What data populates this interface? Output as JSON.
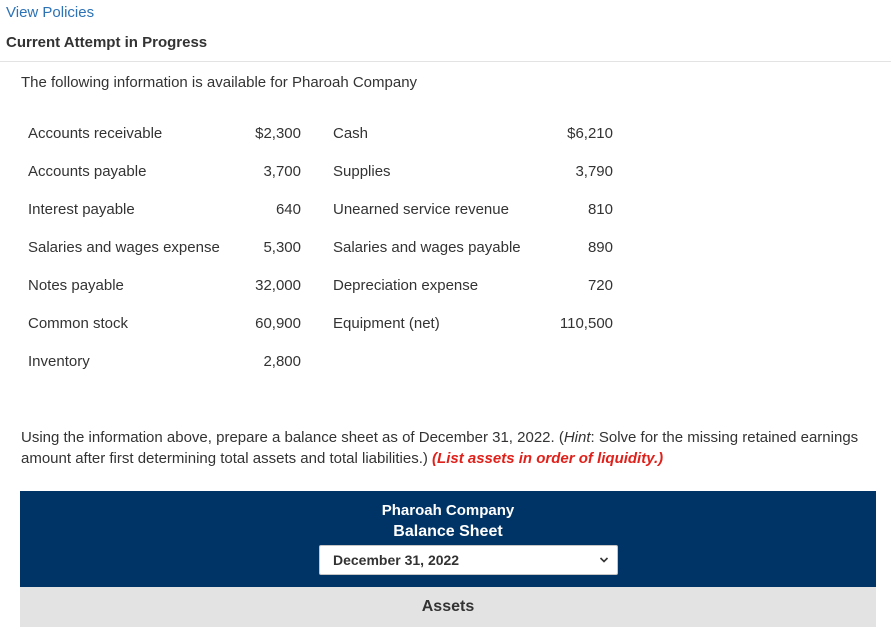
{
  "header": {
    "view_policies": "View Policies",
    "attempt_heading": "Current Attempt in Progress"
  },
  "intro": "The following information is available for Pharoah Company",
  "accounts": [
    {
      "name": "Accounts receivable",
      "amount": "$2,300"
    },
    {
      "name": "Cash",
      "amount": "$6,210"
    },
    {
      "name": "Accounts payable",
      "amount": "3,700"
    },
    {
      "name": "Supplies",
      "amount": "3,790"
    },
    {
      "name": "Interest payable",
      "amount": "640"
    },
    {
      "name": "Unearned service revenue",
      "amount": "810"
    },
    {
      "name": "Salaries and wages expense",
      "amount": "5,300"
    },
    {
      "name": "Salaries and wages payable",
      "amount": "890"
    },
    {
      "name": "Notes payable",
      "amount": "32,000"
    },
    {
      "name": "Depreciation expense",
      "amount": "720"
    },
    {
      "name": "Common stock",
      "amount": "60,900"
    },
    {
      "name": "Equipment (net)",
      "amount": "110,500"
    },
    {
      "name": "Inventory",
      "amount": "2,800"
    }
  ],
  "instructions": {
    "text_before_hint": "Using the information above, prepare a balance sheet as of December 31, 2022. (",
    "hint_label": "Hint",
    "text_after_hint": ": Solve for the missing retained earnings amount after first determining total assets and total liabilities.) ",
    "liquidity_note": "(List assets in order of liquidity.)"
  },
  "balance_sheet": {
    "company": "Pharoah Company",
    "title": "Balance Sheet",
    "date_selected": "December 31, 2022",
    "first_section": "Assets"
  },
  "colors": {
    "header_bg": "#003466",
    "link": "#2c72b5",
    "emphasis_red": "#e0211b",
    "section_bg": "#e3e3e3"
  }
}
